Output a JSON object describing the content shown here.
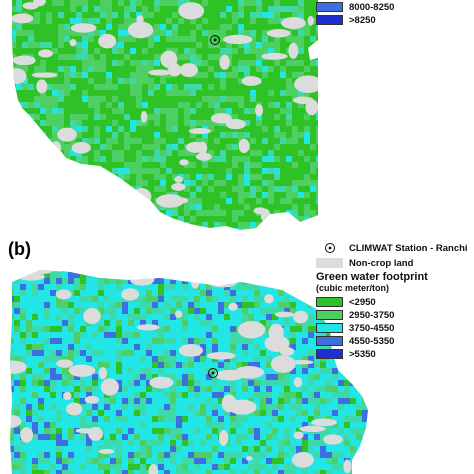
{
  "panel_b_label": "(b)",
  "colors": {
    "green_bright": "#2fc227",
    "green_mid": "#4ecf63",
    "aqua_green": "#3ed9a8",
    "cyan": "#22e6e6",
    "blue_mid": "#3d6fe0",
    "blue_dark": "#1d2fcf",
    "non_crop": "#dcdcdc"
  },
  "legend_a": {
    "items": [
      {
        "label": "8000-8250",
        "color": "#3d6fe0"
      },
      {
        "label": ">8250",
        "color": "#1d2fcf"
      }
    ]
  },
  "legend_b": {
    "station_label": "CLIMWAT Station - Ranchi",
    "noncrop_label": "Non-crop land",
    "title": "Green water footprint",
    "subtitle": "(cubic meter/ton)",
    "items": [
      {
        "label": "<2950",
        "color": "#2fc227"
      },
      {
        "label": "2950-3750",
        "color": "#4ecf63"
      },
      {
        "label": "3750-4550",
        "color": "#22e6e6"
      },
      {
        "label": "4550-5350",
        "color": "#3d6fe0"
      },
      {
        "label": ">5350",
        "color": "#1d2fcf"
      }
    ]
  }
}
